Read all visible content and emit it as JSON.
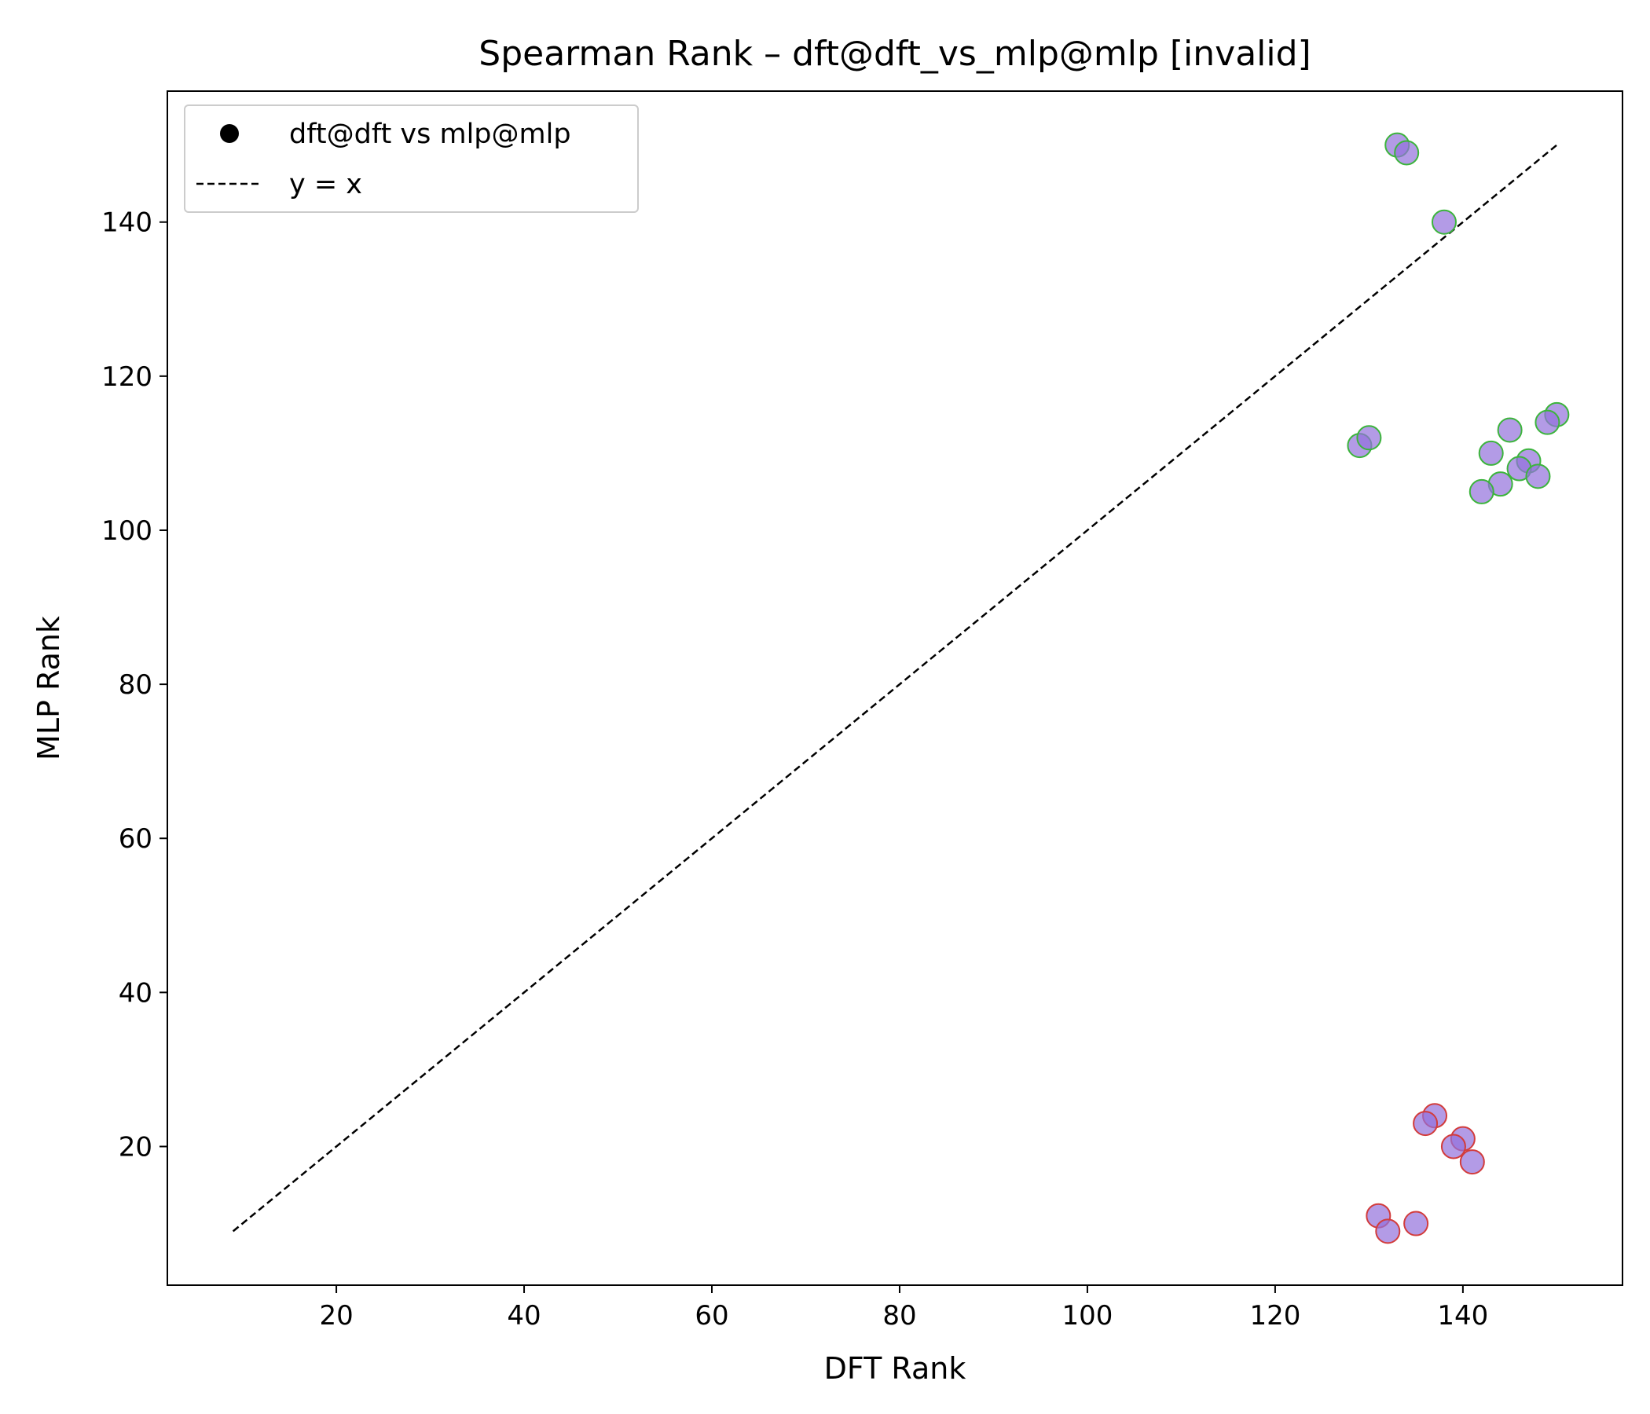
{
  "chart_data": {
    "type": "scatter",
    "title": "Spearman Rank – dft@dft_vs_mlp@mlp [invalid]",
    "xlabel": "DFT Rank",
    "ylabel": "MLP Rank",
    "xlim": [
      2,
      157
    ],
    "ylim": [
      2,
      157
    ],
    "xticks": [
      20,
      40,
      60,
      80,
      100,
      120,
      140
    ],
    "yticks": [
      20,
      40,
      60,
      80,
      100,
      120,
      140
    ],
    "grid": false,
    "legend": {
      "location": "top-left",
      "entries": [
        {
          "label": "dft@dft vs mlp@mlp",
          "marker": "circle",
          "color": "#000000"
        },
        {
          "label": "y = x",
          "marker": "dashed-line",
          "color": "#000000"
        }
      ]
    },
    "reference_line": {
      "label": "y = x",
      "from": [
        9,
        9
      ],
      "to": [
        150,
        150
      ],
      "color": "#000000",
      "style": "dashed"
    },
    "colors": {
      "point_fill": "#9370DB",
      "point_alpha": 0.7,
      "edge_upper": "#3cb43c",
      "edge_lower": "#d23c3c"
    },
    "series": [
      {
        "name": "dft@dft vs mlp@mlp",
        "points": [
          {
            "x": 133,
            "y": 150,
            "edge": "upper"
          },
          {
            "x": 134,
            "y": 149,
            "edge": "upper"
          },
          {
            "x": 138,
            "y": 140,
            "edge": "upper"
          },
          {
            "x": 129,
            "y": 111,
            "edge": "upper"
          },
          {
            "x": 130,
            "y": 112,
            "edge": "upper"
          },
          {
            "x": 150,
            "y": 115,
            "edge": "upper"
          },
          {
            "x": 149,
            "y": 114,
            "edge": "upper"
          },
          {
            "x": 145,
            "y": 113,
            "edge": "upper"
          },
          {
            "x": 143,
            "y": 110,
            "edge": "upper"
          },
          {
            "x": 147,
            "y": 109,
            "edge": "upper"
          },
          {
            "x": 146,
            "y": 108,
            "edge": "upper"
          },
          {
            "x": 148,
            "y": 107,
            "edge": "upper"
          },
          {
            "x": 144,
            "y": 106,
            "edge": "upper"
          },
          {
            "x": 142,
            "y": 105,
            "edge": "upper"
          },
          {
            "x": 137,
            "y": 24,
            "edge": "lower"
          },
          {
            "x": 136,
            "y": 23,
            "edge": "lower"
          },
          {
            "x": 140,
            "y": 21,
            "edge": "lower"
          },
          {
            "x": 139,
            "y": 20,
            "edge": "lower"
          },
          {
            "x": 141,
            "y": 18,
            "edge": "lower"
          },
          {
            "x": 131,
            "y": 11,
            "edge": "lower"
          },
          {
            "x": 135,
            "y": 10,
            "edge": "lower"
          },
          {
            "x": 132,
            "y": 9,
            "edge": "lower"
          }
        ]
      }
    ]
  }
}
